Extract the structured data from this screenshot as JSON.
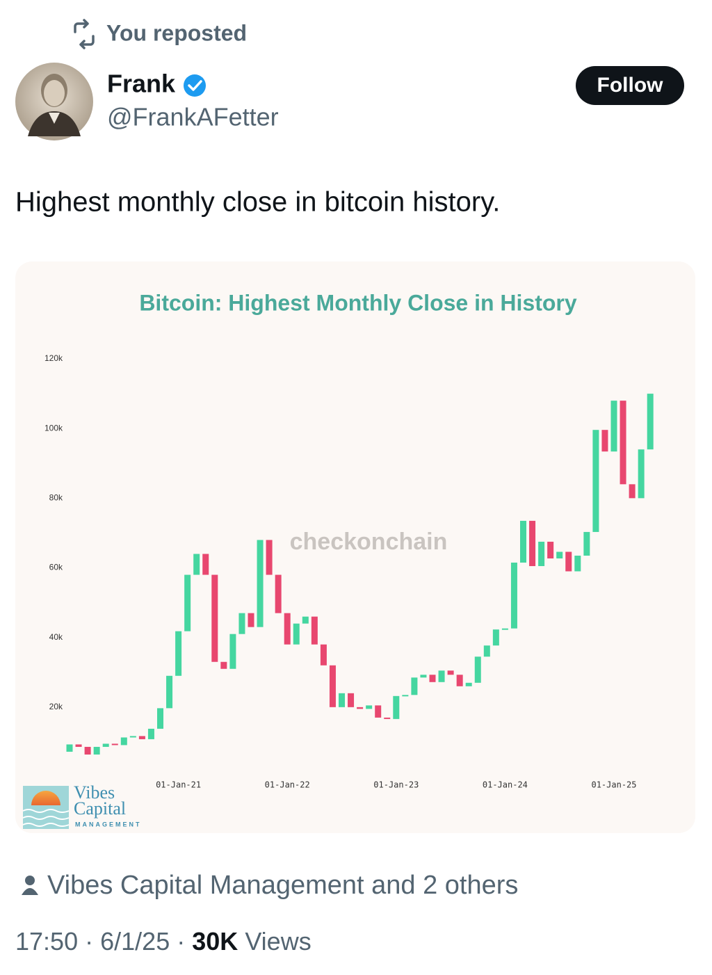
{
  "header": {
    "repost_label": "You reposted"
  },
  "author": {
    "name": "Frank",
    "handle": "@FrankAFetter",
    "follow_button": "Follow"
  },
  "tweet": {
    "text": "Highest monthly close in bitcoin history."
  },
  "chart_data": {
    "type": "candlestick",
    "title": "Bitcoin: Highest Monthly Close in History",
    "watermark": "checkonchain",
    "logo_lines": [
      "Vibes",
      "Capital",
      "MANAGEMENT"
    ],
    "categories": [
      null,
      null,
      null,
      null,
      null,
      null,
      null,
      null,
      null,
      null,
      null,
      null,
      "01-Jan-21",
      null,
      null,
      null,
      null,
      null,
      null,
      null,
      null,
      null,
      null,
      null,
      "01-Jan-22",
      null,
      null,
      null,
      null,
      null,
      null,
      null,
      null,
      null,
      null,
      null,
      "01-Jan-23",
      null,
      null,
      null,
      null,
      null,
      null,
      null,
      null,
      null,
      null,
      null,
      "01-Jan-24",
      null,
      null,
      null,
      null,
      null,
      null,
      null,
      null,
      null,
      null,
      null,
      "01-Jan-25",
      null,
      null,
      null,
      null
    ],
    "open": [
      7200,
      9300,
      8600,
      6400,
      8600,
      9500,
      9100,
      11300,
      11700,
      10800,
      13800,
      19700,
      29000,
      41800,
      58000,
      64000,
      58000,
      33000,
      31000,
      41000,
      47000,
      43000,
      68000,
      58000,
      47000,
      38000,
      44000,
      46000,
      38000,
      32000,
      20000,
      24000,
      20000,
      19500,
      20500,
      17000,
      16600,
      23200,
      23500,
      28500,
      29300,
      27200,
      30500,
      29300,
      26000,
      27000,
      34500,
      37700,
      42300,
      42600,
      61500,
      73500,
      60500,
      67500,
      62700,
      64600,
      59000,
      63500,
      70300,
      99600,
      93400,
      108000,
      84000,
      80000,
      94000
    ],
    "close": [
      9300,
      8600,
      6400,
      8600,
      9500,
      9100,
      11300,
      11700,
      10800,
      13800,
      19700,
      29000,
      41800,
      58000,
      64000,
      58000,
      33000,
      31000,
      41000,
      47000,
      43000,
      68000,
      58000,
      47000,
      38000,
      44000,
      46000,
      38000,
      32000,
      20000,
      24000,
      20000,
      19500,
      20500,
      17000,
      16600,
      23200,
      23500,
      28500,
      29300,
      27200,
      30500,
      29300,
      26000,
      27000,
      34500,
      37700,
      42300,
      42600,
      61500,
      73500,
      60500,
      67500,
      62700,
      64600,
      59000,
      63500,
      70300,
      99600,
      93400,
      108000,
      84000,
      80000,
      94000,
      110000
    ],
    "up_color": "#45d6a0",
    "down_color": "#e8476f",
    "ylim": [
      3000,
      123000
    ],
    "yticks": [
      {
        "value": 20000,
        "label": "20k"
      },
      {
        "value": 40000,
        "label": "40k"
      },
      {
        "value": 60000,
        "label": "60k"
      },
      {
        "value": 80000,
        "label": "80k"
      },
      {
        "value": 100000,
        "label": "100k"
      },
      {
        "value": 120000,
        "label": "120k"
      }
    ],
    "grid": false
  },
  "footer": {
    "reposted_by": "Vibes Capital Management and 2 others",
    "time": "17:50",
    "separator": "·",
    "date": "6/1/25",
    "views_count": "30K",
    "views_label": "Views"
  }
}
